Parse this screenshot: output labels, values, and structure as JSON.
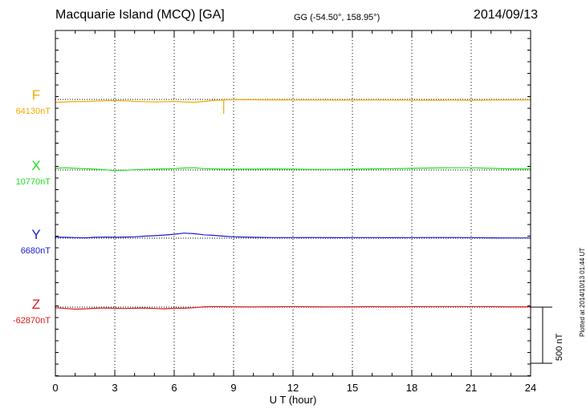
{
  "header": {
    "title": "Macquarie Island (MCQ)  [GA]",
    "coords": "GG (-54.50°, 158.95°)",
    "date": "2014/09/13"
  },
  "footer": {
    "plotted": "Plotted at 2014/10/13 01:44 UT"
  },
  "scale_bar": {
    "label": "500 nT",
    "value_nT": 500
  },
  "chart_data": {
    "type": "line",
    "xlabel": "U T (hour)",
    "xlim": [
      0,
      24
    ],
    "xticks": [
      0,
      3,
      6,
      9,
      12,
      15,
      18,
      21,
      24
    ],
    "tick_labels": [
      "0",
      "3",
      "6",
      "9",
      "12",
      "15",
      "18",
      "21",
      "24"
    ],
    "grid": "vertical dotted every 3 hours",
    "series": [
      {
        "name": "F",
        "baseline": "64130nT",
        "color": "#f5a900",
        "x": [
          0,
          0.5,
          1,
          1.5,
          2,
          2.5,
          3,
          3.5,
          4,
          4.5,
          5,
          5.5,
          6,
          6.5,
          7,
          7.5,
          8,
          8.5,
          9,
          10,
          11,
          12,
          13,
          14,
          15,
          16,
          17,
          18,
          19,
          20,
          21,
          22,
          23,
          24
        ],
        "values": [
          -25,
          -22,
          -18,
          -20,
          -15,
          -12,
          -10,
          -12,
          -18,
          -20,
          -22,
          -20,
          -18,
          -22,
          -25,
          -18,
          -8,
          -5,
          -2,
          -3,
          -4,
          -5,
          -5,
          -6,
          -6,
          -5,
          -6,
          -6,
          -7,
          -6,
          -7,
          -6,
          -5,
          -5
        ]
      },
      {
        "name": "X",
        "baseline": "10770nT",
        "color": "#22e022",
        "x": [
          0,
          0.5,
          1,
          1.5,
          2,
          2.5,
          3,
          3.5,
          4,
          4.5,
          5,
          5.5,
          6,
          6.5,
          7,
          7.5,
          8,
          8.5,
          9,
          10,
          11,
          12,
          13,
          14,
          15,
          16,
          17,
          18,
          19,
          20,
          21,
          22,
          23,
          24
        ],
        "values": [
          15,
          20,
          15,
          12,
          8,
          2,
          -5,
          -2,
          2,
          5,
          8,
          10,
          12,
          18,
          20,
          12,
          10,
          8,
          8,
          8,
          10,
          8,
          6,
          5,
          8,
          10,
          12,
          15,
          18,
          20,
          20,
          15,
          10,
          10
        ]
      },
      {
        "name": "Y",
        "baseline": "6680nT",
        "color": "#1c1cd0",
        "x": [
          0,
          0.5,
          1,
          1.5,
          2,
          2.5,
          3,
          3.5,
          4,
          4.5,
          5,
          5.5,
          6,
          6.5,
          7,
          7.5,
          8,
          8.5,
          9,
          10,
          11,
          12,
          13,
          14,
          15,
          16,
          17,
          18,
          19,
          20,
          21,
          22,
          23,
          24
        ],
        "values": [
          10,
          8,
          5,
          3,
          8,
          10,
          8,
          10,
          12,
          18,
          22,
          28,
          35,
          45,
          40,
          30,
          25,
          18,
          12,
          8,
          5,
          5,
          6,
          4,
          5,
          5,
          4,
          5,
          6,
          6,
          5,
          3,
          2,
          2
        ]
      },
      {
        "name": "Z",
        "baseline": "-62870nT",
        "color": "#e01818",
        "x": [
          0,
          0.5,
          1,
          1.5,
          2,
          2.5,
          3,
          3.5,
          4,
          4.5,
          5,
          5.5,
          6,
          6.5,
          7,
          7.5,
          8,
          8.5,
          9,
          10,
          11,
          12,
          13,
          14,
          15,
          16,
          17,
          18,
          19,
          20,
          21,
          22,
          23,
          24
        ],
        "values": [
          -5,
          -12,
          -18,
          -15,
          -10,
          -8,
          -10,
          -12,
          -10,
          -8,
          -12,
          -15,
          -10,
          -10,
          -5,
          3,
          5,
          4,
          3,
          2,
          3,
          5,
          3,
          2,
          3,
          4,
          3,
          4,
          5,
          5,
          5,
          4,
          3,
          3
        ]
      }
    ]
  }
}
